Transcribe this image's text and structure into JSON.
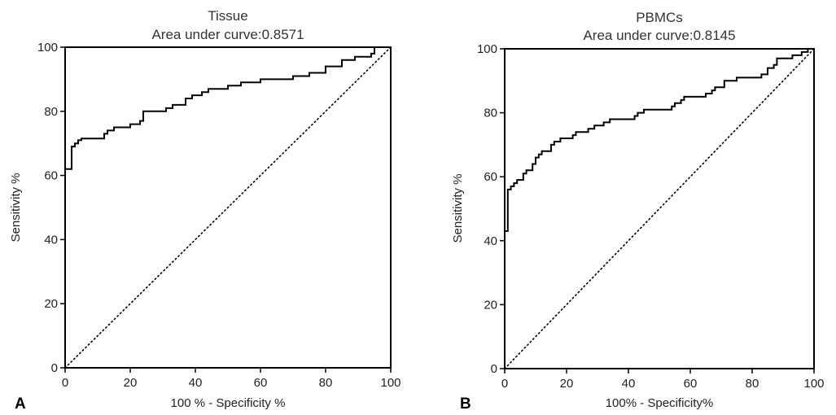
{
  "chart_data": [
    {
      "type": "line",
      "panel_label": "A",
      "title": "Tissue",
      "subtitle": "Area under curve:0.8571",
      "xlabel": "100 % - Specificity %",
      "ylabel": "Sensitivity %",
      "xlim": [
        0,
        100
      ],
      "ylim": [
        0,
        100
      ],
      "xticks": [
        "0",
        "20",
        "40",
        "60",
        "80",
        "100"
      ],
      "yticks": [
        "0",
        "20",
        "40",
        "60",
        "80",
        "100"
      ],
      "grid": false,
      "reference_line": {
        "style": "dotted",
        "points": [
          [
            0,
            0
          ],
          [
            100,
            100
          ]
        ]
      },
      "series": [
        {
          "style": "step",
          "points": [
            [
              0,
              60
            ],
            [
              0,
              62
            ],
            [
              2,
              62
            ],
            [
              2,
              69
            ],
            [
              3,
              69
            ],
            [
              3,
              70
            ],
            [
              4,
              70
            ],
            [
              4,
              71
            ],
            [
              5,
              71
            ],
            [
              5,
              71.5
            ],
            [
              12,
              71.5
            ],
            [
              12,
              73
            ],
            [
              13,
              73
            ],
            [
              13,
              74
            ],
            [
              15,
              74
            ],
            [
              15,
              75
            ],
            [
              20,
              75
            ],
            [
              20,
              76
            ],
            [
              23,
              76
            ],
            [
              23,
              77
            ],
            [
              24,
              77
            ],
            [
              24,
              80
            ],
            [
              31,
              80
            ],
            [
              31,
              81
            ],
            [
              33,
              81
            ],
            [
              33,
              82
            ],
            [
              37,
              82
            ],
            [
              37,
              84
            ],
            [
              39,
              84
            ],
            [
              39,
              85
            ],
            [
              42,
              85
            ],
            [
              42,
              86
            ],
            [
              44,
              86
            ],
            [
              44,
              87
            ],
            [
              50,
              87
            ],
            [
              50,
              88
            ],
            [
              54,
              88
            ],
            [
              54,
              89
            ],
            [
              60,
              89
            ],
            [
              60,
              90
            ],
            [
              70,
              90
            ],
            [
              70,
              91
            ],
            [
              75,
              91
            ],
            [
              75,
              92
            ],
            [
              80,
              92
            ],
            [
              80,
              94
            ],
            [
              85,
              94
            ],
            [
              85,
              96
            ],
            [
              89,
              96
            ],
            [
              89,
              97
            ],
            [
              94,
              97
            ],
            [
              94,
              98
            ],
            [
              95,
              98
            ],
            [
              95,
              100
            ],
            [
              100,
              100
            ]
          ]
        }
      ]
    },
    {
      "type": "line",
      "panel_label": "B",
      "title": "PBMCs",
      "subtitle": "Area under curve:0.8145",
      "xlabel": "100% - Specificity%",
      "ylabel": "Sensitivity %",
      "xlim": [
        0,
        100
      ],
      "ylim": [
        0,
        100
      ],
      "xticks": [
        "0",
        "20",
        "40",
        "60",
        "80",
        "100"
      ],
      "yticks": [
        "0",
        "20",
        "40",
        "60",
        "80",
        "100"
      ],
      "grid": false,
      "reference_line": {
        "style": "dotted",
        "points": [
          [
            0,
            0
          ],
          [
            100,
            100
          ]
        ]
      },
      "series": [
        {
          "style": "step",
          "points": [
            [
              0,
              42
            ],
            [
              0,
              43
            ],
            [
              1,
              43
            ],
            [
              1,
              56
            ],
            [
              2,
              56
            ],
            [
              2,
              57
            ],
            [
              3,
              57
            ],
            [
              3,
              58
            ],
            [
              4,
              58
            ],
            [
              4,
              59
            ],
            [
              6,
              59
            ],
            [
              6,
              61
            ],
            [
              7,
              61
            ],
            [
              7,
              62
            ],
            [
              9,
              62
            ],
            [
              9,
              64
            ],
            [
              10,
              64
            ],
            [
              10,
              66
            ],
            [
              11,
              66
            ],
            [
              11,
              67
            ],
            [
              12,
              67
            ],
            [
              12,
              68
            ],
            [
              15,
              68
            ],
            [
              15,
              70
            ],
            [
              16,
              70
            ],
            [
              16,
              71
            ],
            [
              18,
              71
            ],
            [
              18,
              72
            ],
            [
              22,
              72
            ],
            [
              22,
              73
            ],
            [
              23,
              73
            ],
            [
              23,
              74
            ],
            [
              27,
              74
            ],
            [
              27,
              75
            ],
            [
              29,
              75
            ],
            [
              29,
              76
            ],
            [
              32,
              76
            ],
            [
              32,
              77
            ],
            [
              34,
              77
            ],
            [
              34,
              78
            ],
            [
              42,
              78
            ],
            [
              42,
              79
            ],
            [
              43,
              79
            ],
            [
              43,
              80
            ],
            [
              45,
              80
            ],
            [
              45,
              81
            ],
            [
              54,
              81
            ],
            [
              54,
              82
            ],
            [
              55,
              82
            ],
            [
              55,
              83
            ],
            [
              57,
              83
            ],
            [
              57,
              84
            ],
            [
              58,
              84
            ],
            [
              58,
              85
            ],
            [
              65,
              85
            ],
            [
              65,
              86
            ],
            [
              67,
              86
            ],
            [
              67,
              87
            ],
            [
              68,
              87
            ],
            [
              68,
              88
            ],
            [
              71,
              88
            ],
            [
              71,
              90
            ],
            [
              75,
              90
            ],
            [
              75,
              91
            ],
            [
              83,
              91
            ],
            [
              83,
              92
            ],
            [
              85,
              92
            ],
            [
              85,
              94
            ],
            [
              87,
              94
            ],
            [
              87,
              95
            ],
            [
              88,
              95
            ],
            [
              88,
              97
            ],
            [
              93,
              97
            ],
            [
              93,
              98
            ],
            [
              96,
              98
            ],
            [
              96,
              99
            ],
            [
              98,
              99
            ],
            [
              98,
              100
            ],
            [
              100,
              100
            ]
          ]
        }
      ]
    }
  ]
}
